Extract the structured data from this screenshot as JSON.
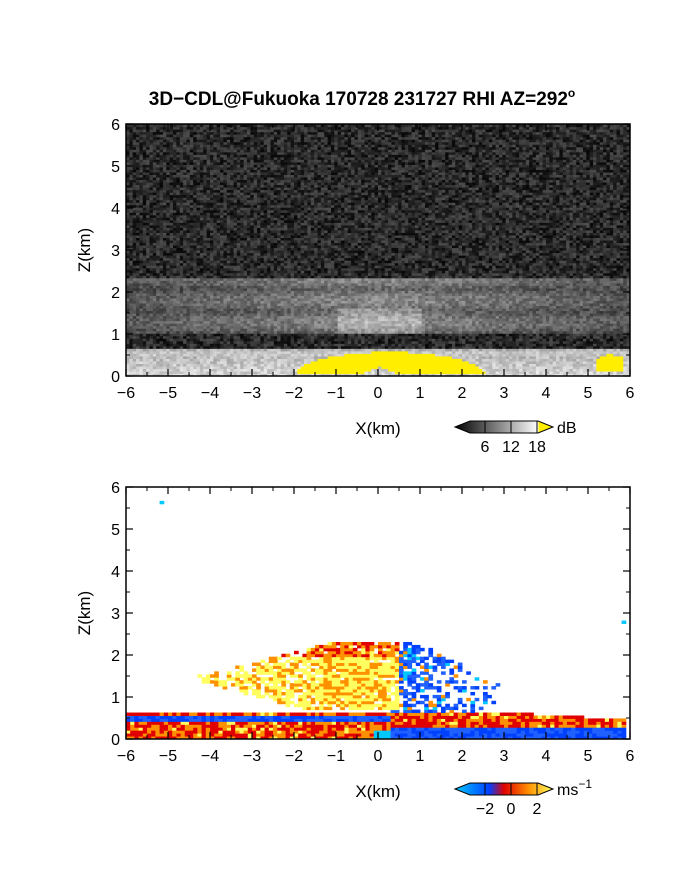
{
  "title": "3D−CDL@Fukuoka 170728 231727 RHI AZ=292",
  "title_degree": "o",
  "chart_data": [
    {
      "type": "heatmap",
      "quantity": "backscatter intensity",
      "xlabel": "X(km)",
      "ylabel": "Z(km)",
      "xlim": [
        -6,
        6
      ],
      "ylim": [
        0,
        6
      ],
      "xticks": [
        "−6",
        "−5",
        "−4",
        "−3",
        "−2",
        "−1",
        "0",
        "1",
        "2",
        "3",
        "4",
        "5",
        "6"
      ],
      "yticks": [
        "0",
        "1",
        "2",
        "3",
        "4",
        "5",
        "6"
      ],
      "colorbar": {
        "unit": "dB",
        "ticks": [
          "6",
          "12",
          "18"
        ],
        "scale": "grayscale with yellow above 18",
        "colors": [
          "#000000",
          "#ffffff",
          "#ffee00"
        ]
      },
      "features": [
        {
          "name": "noisy background",
          "z_range": [
            0.6,
            6
          ],
          "value_db": 3
        },
        {
          "name": "aerosol layer (gray)",
          "x_range": [
            -6,
            6
          ],
          "z_range": [
            1.0,
            2.3
          ],
          "value_db": 10
        },
        {
          "name": "boundary layer (bright)",
          "x_range": [
            -6,
            6
          ],
          "z_range": [
            0,
            0.65
          ],
          "value_db": 15
        },
        {
          "name": "strong return (yellow)",
          "x_range": [
            -2,
            2.5
          ],
          "z_range": [
            0,
            0.55
          ],
          "value_db": 20
        },
        {
          "name": "strong return (yellow)",
          "x_range": [
            5.2,
            5.8
          ],
          "z_range": [
            0.1,
            0.5
          ],
          "value_db": 20
        }
      ]
    },
    {
      "type": "heatmap",
      "quantity": "radial velocity",
      "xlabel": "X(km)",
      "ylabel": "Z(km)",
      "xlim": [
        -6,
        6
      ],
      "ylim": [
        0,
        6
      ],
      "xticks": [
        "−6",
        "−5",
        "−4",
        "−3",
        "−2",
        "−1",
        "0",
        "1",
        "2",
        "3",
        "4",
        "5",
        "6"
      ],
      "yticks": [
        "0",
        "1",
        "2",
        "3",
        "4",
        "5",
        "6"
      ],
      "colorbar": {
        "unit": "ms",
        "unit_exponent": "−1",
        "ticks": [
          "−2",
          "0",
          "2"
        ],
        "colors": [
          "#00c8ff",
          "#0040ff",
          "#e00000",
          "#ff9000",
          "#ffff60"
        ]
      },
      "features": [
        {
          "name": "positive velocity cloud",
          "x_range": [
            -5,
            0.4
          ],
          "z_range": [
            0.7,
            2.3
          ],
          "value_ms": 1.5
        },
        {
          "name": "negative velocity cloud",
          "x_range": [
            0.2,
            2.8
          ],
          "z_range": [
            0.6,
            2.3
          ],
          "value_ms": -1.5
        },
        {
          "name": "low level band",
          "x_range": [
            -6,
            5.8
          ],
          "z_range": [
            0,
            0.6
          ],
          "value_ms": 0.5
        },
        {
          "name": "isolated echo",
          "x": -5.2,
          "z": 5.6,
          "value_ms": -2
        },
        {
          "name": "isolated echo",
          "x": 5.8,
          "z": 2.75,
          "value_ms": -2
        }
      ]
    }
  ]
}
